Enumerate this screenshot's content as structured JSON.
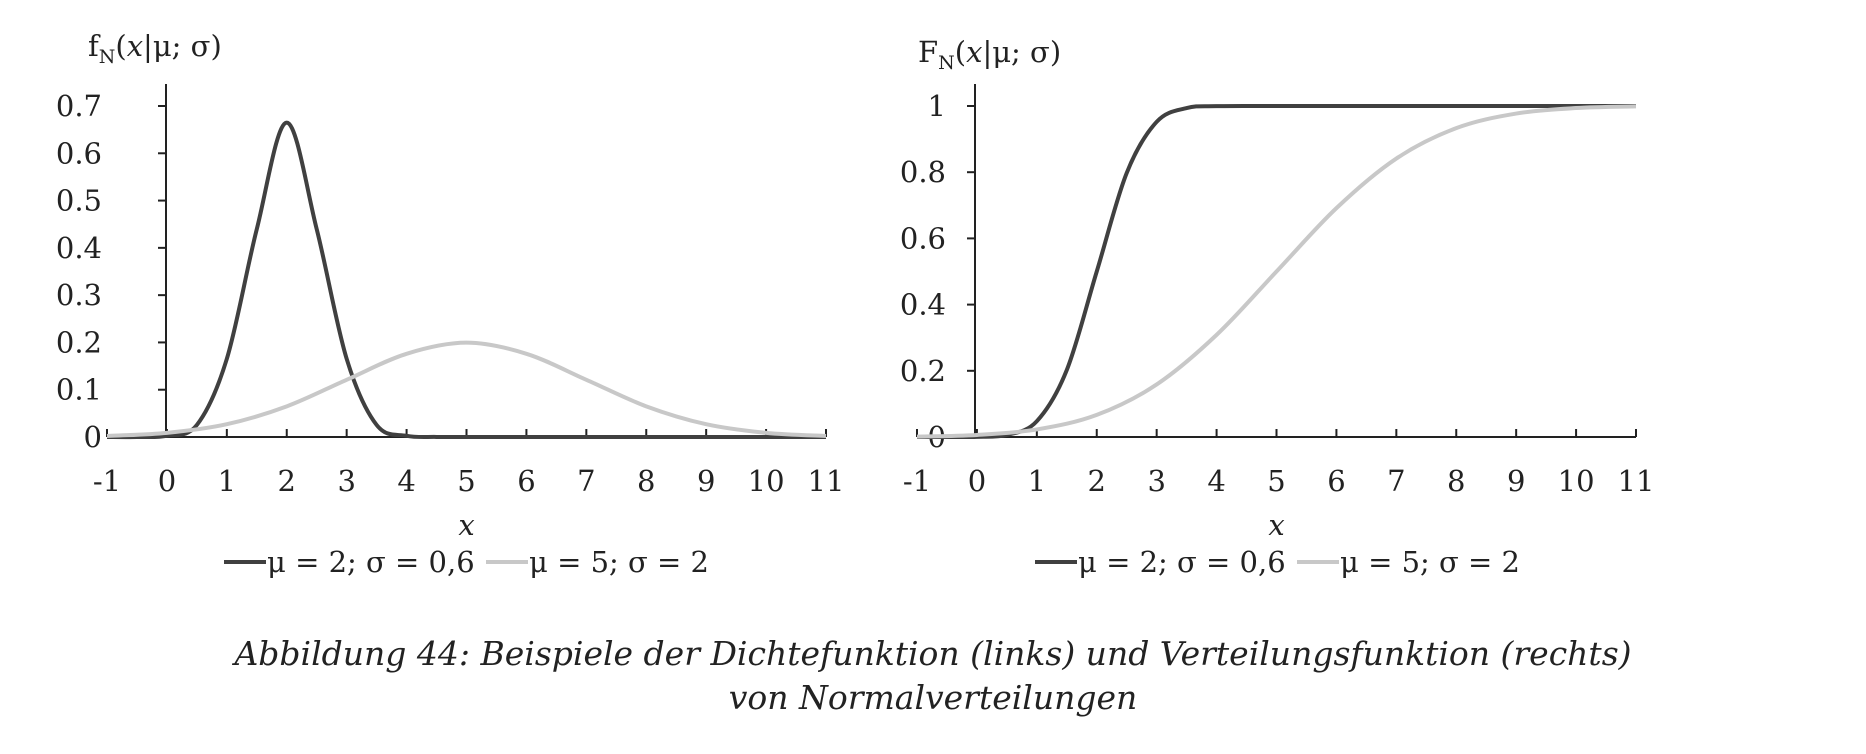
{
  "chart_data": [
    {
      "type": "line",
      "title": "",
      "ylabel": "f_N(x|μ; σ)",
      "ylabel_parts": {
        "main": "f",
        "sub": "N",
        "open": "(",
        "var": "x",
        "rest": "|μ; σ)"
      },
      "xlabel": "x",
      "xlim": [
        -1,
        11
      ],
      "ylim": [
        0,
        0.7
      ],
      "x_ticks": [
        -1,
        0,
        1,
        2,
        3,
        4,
        5,
        6,
        7,
        8,
        9,
        10,
        11
      ],
      "x_tick_labels": [
        "-1",
        "0",
        "1",
        "2",
        "3",
        "4",
        "5",
        "6",
        "7",
        "8",
        "9",
        "10",
        "11"
      ],
      "y_ticks": [
        0,
        0.1,
        0.2,
        0.3,
        0.4,
        0.5,
        0.6,
        0.7
      ],
      "y_tick_labels": [
        "0",
        "0.1",
        "0.2",
        "0.3",
        "0.4",
        "0.5",
        "0.6",
        "0.7"
      ],
      "grid": false,
      "legend_position": "bottom",
      "series": [
        {
          "name": "μ = 2; σ = 0,6",
          "color": "#404040",
          "x": [
            -1,
            -0.5,
            0,
            0.5,
            1,
            1.5,
            2,
            2.5,
            3,
            3.5,
            4,
            4.5,
            5,
            6,
            7,
            8,
            9,
            10,
            11
          ],
          "y": [
            0,
            0,
            0.0025,
            0.0255,
            0.1654,
            0.4396,
            0.6649,
            0.4396,
            0.1654,
            0.0255,
            0.0025,
            0.0001,
            0,
            0,
            0,
            0,
            0,
            0,
            0
          ]
        },
        {
          "name": "μ = 5; σ = 2",
          "color": "#c8c8c8",
          "x": [
            -1,
            0,
            1,
            2,
            3,
            4,
            5,
            6,
            7,
            8,
            9,
            10,
            11
          ],
          "y": [
            0.0022,
            0.0088,
            0.027,
            0.0648,
            0.121,
            0.176,
            0.1995,
            0.176,
            0.121,
            0.0648,
            0.027,
            0.0088,
            0.0022
          ]
        }
      ]
    },
    {
      "type": "line",
      "title": "",
      "ylabel": "F_N(x|μ; σ)",
      "ylabel_parts": {
        "main": "F",
        "sub": "N",
        "open": "(",
        "var": "x",
        "rest": "|μ; σ)"
      },
      "xlabel": "x",
      "xlim": [
        -1,
        11
      ],
      "ylim": [
        0,
        1
      ],
      "x_ticks": [
        -1,
        0,
        1,
        2,
        3,
        4,
        5,
        6,
        7,
        8,
        9,
        10,
        11
      ],
      "x_tick_labels": [
        "-1",
        "0",
        "1",
        "2",
        "3",
        "4",
        "5",
        "6",
        "7",
        "8",
        "9",
        "10",
        "11"
      ],
      "y_ticks": [
        0,
        0.2,
        0.4,
        0.6,
        0.8,
        1
      ],
      "y_tick_labels": [
        "0",
        "0.2",
        "0.4",
        "0.6",
        "0.8",
        "1"
      ],
      "grid": false,
      "legend_position": "bottom",
      "series": [
        {
          "name": "μ = 2; σ = 0,6",
          "color": "#404040",
          "x": [
            -1,
            -0.5,
            0,
            0.5,
            1,
            1.5,
            2,
            2.5,
            3,
            3.5,
            4,
            5,
            6,
            7,
            8,
            9,
            10,
            11
          ],
          "y": [
            0,
            0,
            0.0004,
            0.0062,
            0.0478,
            0.2023,
            0.5,
            0.7977,
            0.9522,
            0.9938,
            0.9996,
            1,
            1,
            1,
            1,
            1,
            1,
            1
          ]
        },
        {
          "name": "μ = 5; σ = 2",
          "color": "#c8c8c8",
          "x": [
            -1,
            0,
            1,
            2,
            3,
            4,
            5,
            6,
            7,
            8,
            9,
            10,
            11
          ],
          "y": [
            0.0013,
            0.0062,
            0.0228,
            0.0668,
            0.1587,
            0.3085,
            0.5,
            0.6915,
            0.8413,
            0.9332,
            0.9772,
            0.9938,
            0.9987
          ]
        }
      ]
    }
  ],
  "caption": {
    "line1": "Abbildung 44: Beispiele der Dichtefunktion (links) und Verteilungsfunktion (rechts)",
    "line2": "von Normalverteilungen"
  }
}
